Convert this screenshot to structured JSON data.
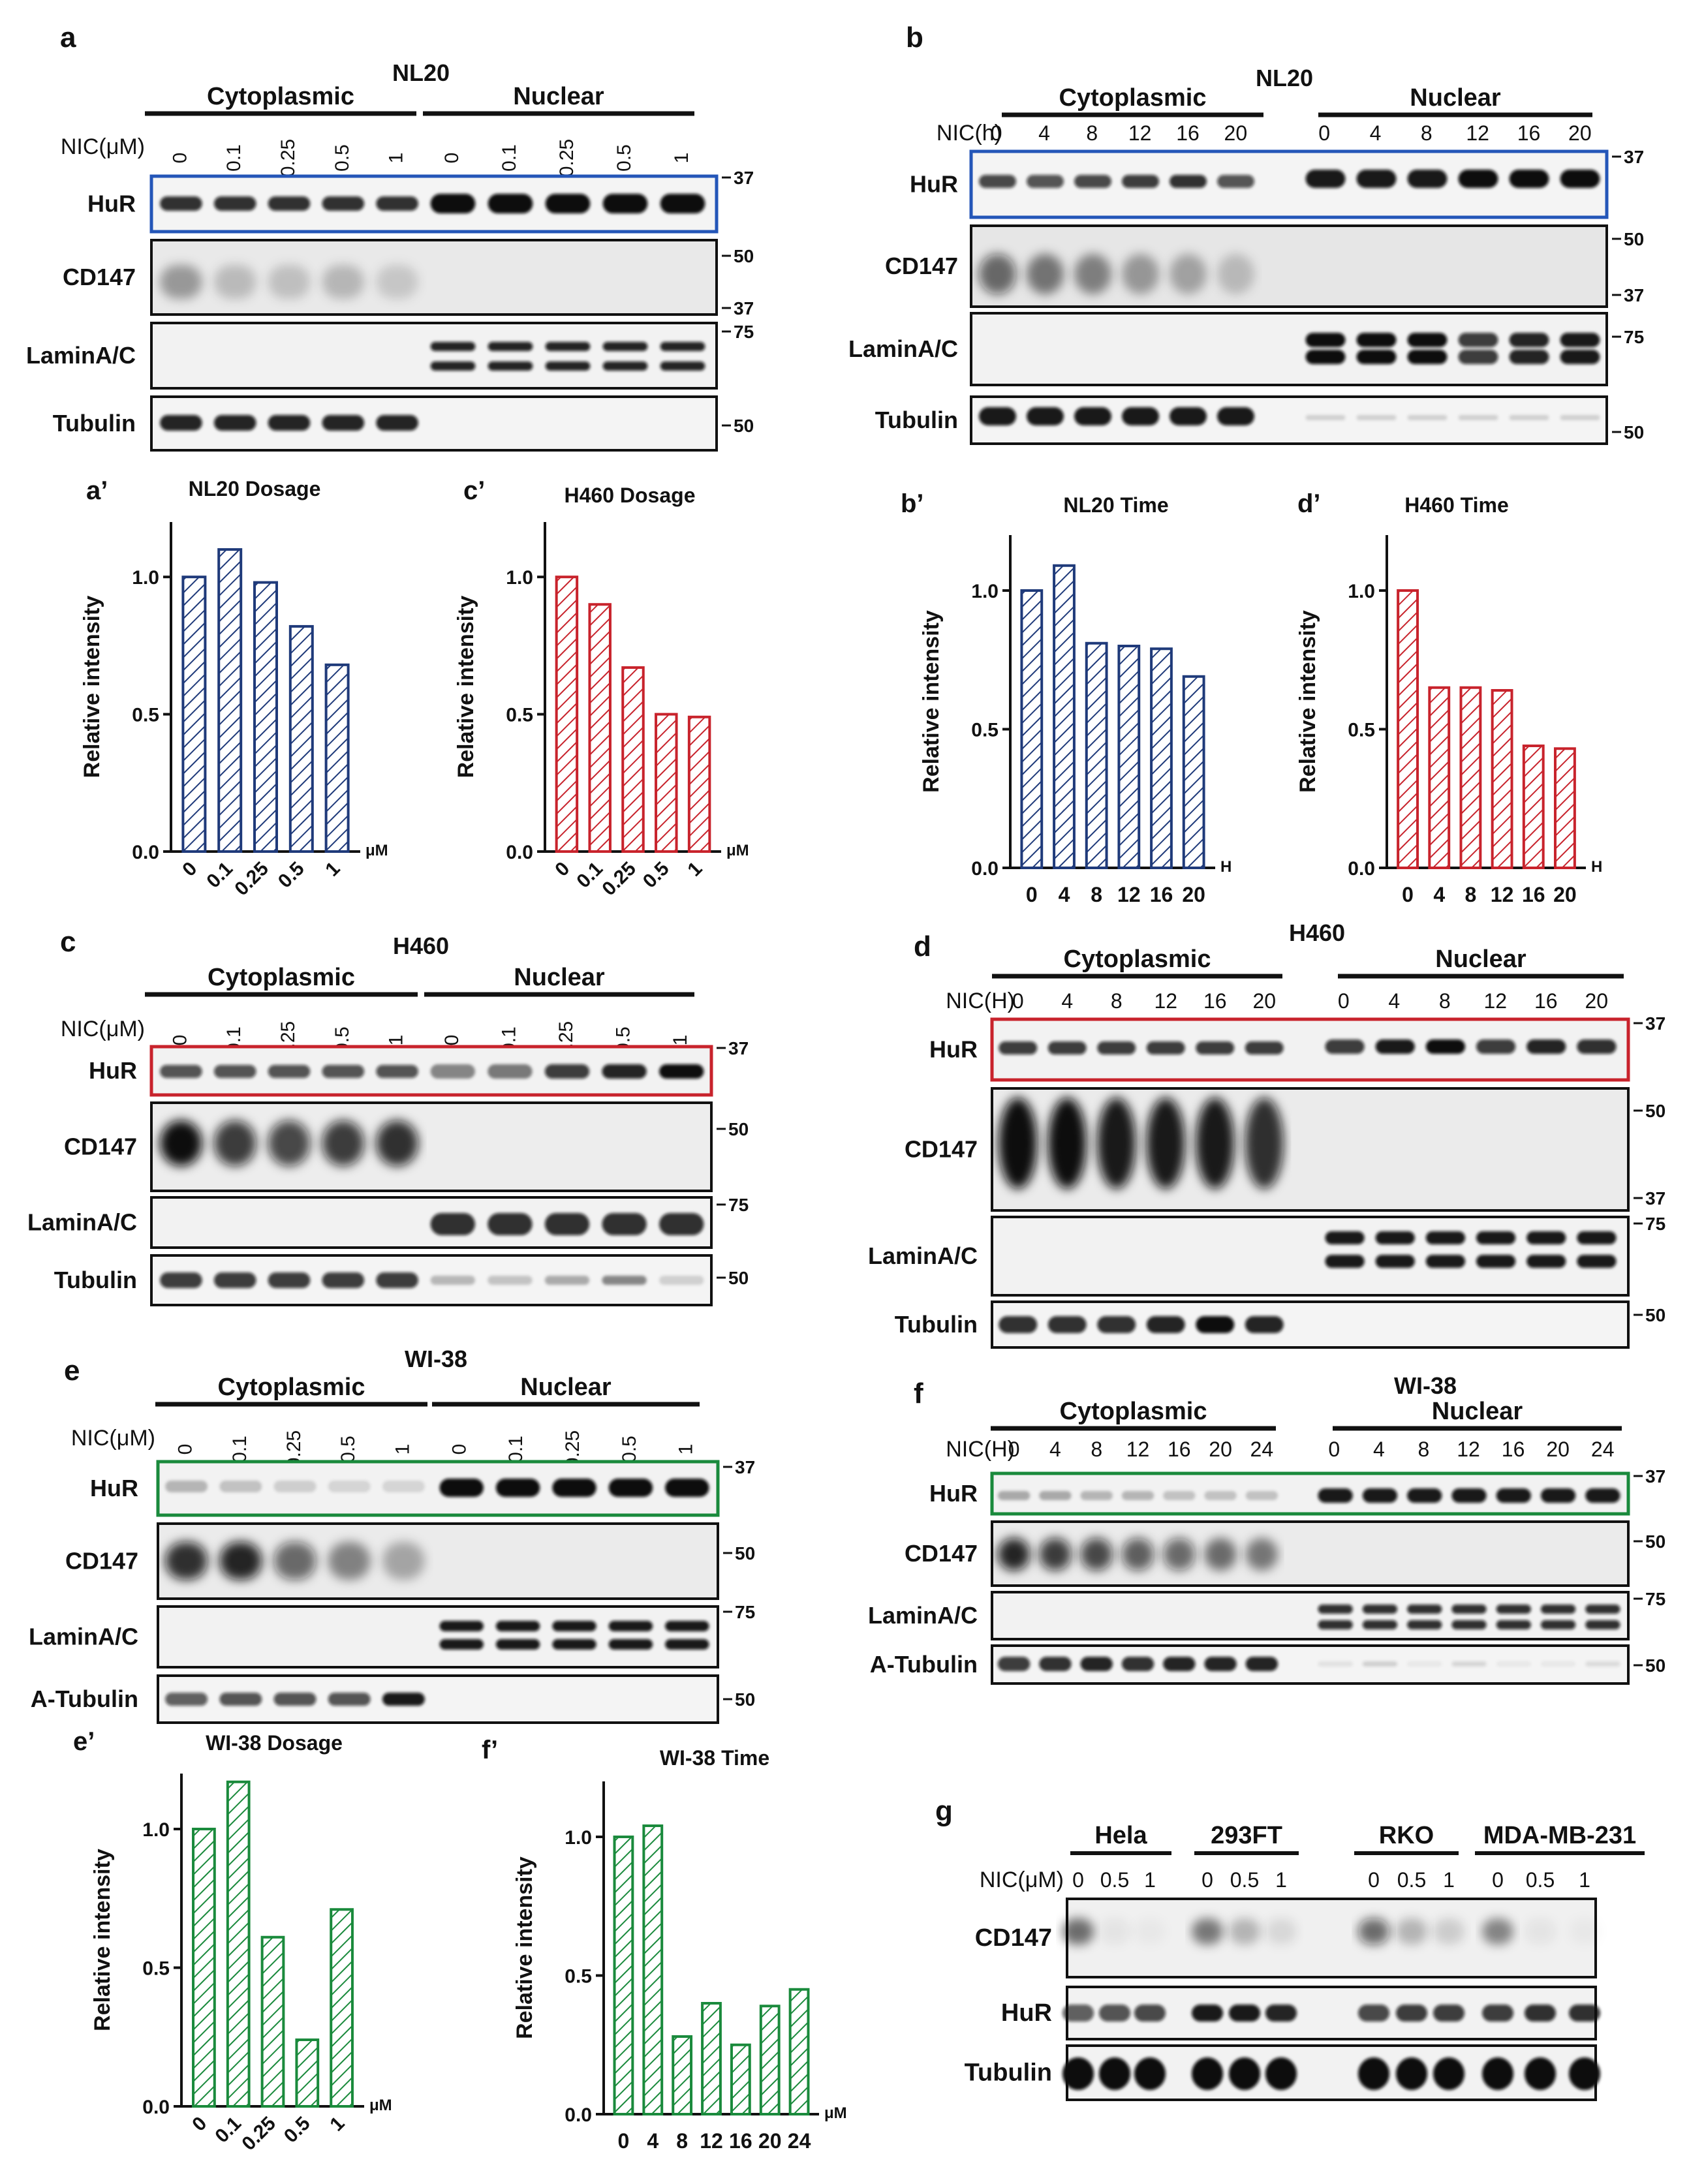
{
  "colors": {
    "navy": "#1f3a7a",
    "red": "#c8232c",
    "green": "#1a8a3c",
    "blueBox": "#2456b8",
    "ink": "#111111"
  },
  "blots": [
    {
      "id": "a",
      "panel_label": "a",
      "cell_line": "NL20",
      "groups": [
        "Cytoplasmic",
        "Nuclear"
      ],
      "treatment_label": "NIC(μM)",
      "lanes_left": [
        "0",
        "0.1",
        "0.25",
        "0.5",
        "1"
      ],
      "lanes_right": [
        "0",
        "0.1",
        "0.25",
        "0.5",
        "1"
      ],
      "lane_rotated": true,
      "rows": [
        {
          "label": "HuR",
          "highlight": "blue",
          "markers": [
            "37"
          ]
        },
        {
          "label": "CD147",
          "markers": [
            "50",
            "37"
          ]
        },
        {
          "label": "LaminA/C",
          "markers": [
            "75"
          ]
        },
        {
          "label": "Tubulin",
          "markers": [
            "50"
          ]
        }
      ]
    },
    {
      "id": "b",
      "panel_label": "b",
      "cell_line": "NL20",
      "groups": [
        "Cytoplasmic",
        "Nuclear"
      ],
      "treatment_label": "NIC(h)",
      "lanes_left": [
        "0",
        "4",
        "8",
        "12",
        "16",
        "20"
      ],
      "lanes_right": [
        "0",
        "4",
        "8",
        "12",
        "16",
        "20"
      ],
      "lane_rotated": false,
      "rows": [
        {
          "label": "HuR",
          "highlight": "blue",
          "markers": [
            "37"
          ]
        },
        {
          "label": "CD147",
          "markers": [
            "50",
            "37"
          ]
        },
        {
          "label": "LaminA/C",
          "markers": [
            "75"
          ]
        },
        {
          "label": "Tubulin",
          "markers": [
            "50"
          ]
        }
      ]
    },
    {
      "id": "c",
      "panel_label": "c",
      "cell_line": "H460",
      "groups": [
        "Cytoplasmic",
        "Nuclear"
      ],
      "treatment_label": "NIC(μM)",
      "lanes_left": [
        "0",
        "0.1",
        "0.25",
        "0.5",
        "1"
      ],
      "lanes_right": [
        "0",
        "0.1",
        "0.25",
        "0.5",
        "1"
      ],
      "lane_rotated": true,
      "rows": [
        {
          "label": "HuR",
          "highlight": "red",
          "markers": [
            "37"
          ]
        },
        {
          "label": "CD147",
          "markers": [
            "50"
          ]
        },
        {
          "label": "LaminA/C",
          "markers": [
            "75"
          ]
        },
        {
          "label": "Tubulin",
          "markers": [
            "50"
          ]
        }
      ]
    },
    {
      "id": "d",
      "panel_label": "d",
      "cell_line": "H460",
      "groups": [
        "Cytoplasmic",
        "Nuclear"
      ],
      "treatment_label": "NIC(H)",
      "lanes_left": [
        "0",
        "4",
        "8",
        "12",
        "16",
        "20"
      ],
      "lanes_right": [
        "0",
        "4",
        "8",
        "12",
        "16",
        "20"
      ],
      "lane_rotated": false,
      "rows": [
        {
          "label": "HuR",
          "highlight": "red",
          "markers": [
            "37"
          ]
        },
        {
          "label": "CD147",
          "markers": [
            "50",
            "37"
          ]
        },
        {
          "label": "LaminA/C",
          "markers": [
            "75"
          ]
        },
        {
          "label": "Tubulin",
          "markers": [
            "50"
          ]
        }
      ]
    },
    {
      "id": "e",
      "panel_label": "e",
      "cell_line": "WI-38",
      "groups": [
        "Cytoplasmic",
        "Nuclear"
      ],
      "treatment_label": "NIC(μM)",
      "lanes_left": [
        "0",
        "0.1",
        "0.25",
        "0.5",
        "1"
      ],
      "lanes_right": [
        "0",
        "0.1",
        "0.25",
        "0.5",
        "1"
      ],
      "lane_rotated": true,
      "rows": [
        {
          "label": "HuR",
          "highlight": "green",
          "markers": [
            "37"
          ]
        },
        {
          "label": "CD147",
          "markers": [
            "50"
          ]
        },
        {
          "label": "LaminA/C",
          "markers": [
            "75"
          ]
        },
        {
          "label": "A-Tubulin",
          "markers": [
            "50"
          ]
        }
      ]
    },
    {
      "id": "f",
      "panel_label": "f",
      "cell_line": "WI-38",
      "groups": [
        "Cytoplasmic",
        "Nuclear"
      ],
      "treatment_label": "NIC(H)",
      "lanes_left": [
        "0",
        "4",
        "8",
        "12",
        "16",
        "20",
        "24"
      ],
      "lanes_right": [
        "0",
        "4",
        "8",
        "12",
        "16",
        "20",
        "24"
      ],
      "lane_rotated": false,
      "rows": [
        {
          "label": "HuR",
          "highlight": "green",
          "markers": [
            "37"
          ]
        },
        {
          "label": "CD147",
          "markers": [
            "50"
          ]
        },
        {
          "label": "LaminA/C",
          "markers": [
            "75"
          ]
        },
        {
          "label": "A-Tubulin",
          "markers": [
            "50"
          ]
        }
      ]
    },
    {
      "id": "g",
      "panel_label": "g",
      "cell_line": "",
      "groups": [
        "Hela",
        "293FT",
        "RKO",
        "MDA-MB-231"
      ],
      "treatment_label": "NIC(μM)",
      "lanes": [
        "0",
        "0.5",
        "1"
      ],
      "lane_rotated": false,
      "rows": [
        {
          "label": "CD147",
          "markers": []
        },
        {
          "label": "HuR",
          "markers": []
        },
        {
          "label": "Tubulin",
          "markers": []
        }
      ]
    }
  ],
  "chart_data": [
    {
      "id": "a_prime",
      "panel_label": "a’",
      "type": "bar",
      "title": "NL20 Dosage",
      "categories": [
        "0",
        "0.1",
        "0.25",
        "0.5",
        "1"
      ],
      "values": [
        1.0,
        1.1,
        0.98,
        0.82,
        0.68
      ],
      "ylabel": "Relative intensity",
      "unit": "μM",
      "ylim": [
        0,
        1.2
      ],
      "yticks": [
        "0.0",
        "0.5",
        "1.0"
      ],
      "ytick_values": [
        0,
        0.5,
        1.0
      ],
      "color": "navy",
      "rotated": true
    },
    {
      "id": "c_prime",
      "panel_label": "c’",
      "type": "bar",
      "title": "H460 Dosage",
      "categories": [
        "0",
        "0.1",
        "0.25",
        "0.5",
        "1"
      ],
      "values": [
        1.0,
        0.9,
        0.67,
        0.5,
        0.49
      ],
      "ylabel": "Relative intensity",
      "unit": "μM",
      "ylim": [
        0,
        1.2
      ],
      "yticks": [
        "0.0",
        "0.5",
        "1.0"
      ],
      "ytick_values": [
        0,
        0.5,
        1.0
      ],
      "color": "red",
      "rotated": true
    },
    {
      "id": "b_prime",
      "panel_label": "b’",
      "type": "bar",
      "title": "NL20 Time",
      "categories": [
        "0",
        "4",
        "8",
        "12",
        "16",
        "20"
      ],
      "values": [
        1.0,
        1.09,
        0.81,
        0.8,
        0.79,
        0.69
      ],
      "ylabel": "Relative intensity",
      "unit": "H",
      "ylim": [
        0,
        1.2
      ],
      "yticks": [
        "0.0",
        "0.5",
        "1.0"
      ],
      "ytick_values": [
        0,
        0.5,
        1.0
      ],
      "color": "navy",
      "rotated": false
    },
    {
      "id": "d_prime",
      "panel_label": "d’",
      "type": "bar",
      "title": "H460 Time",
      "categories": [
        "0",
        "4",
        "8",
        "12",
        "16",
        "20"
      ],
      "values": [
        1.0,
        0.65,
        0.65,
        0.64,
        0.44,
        0.43
      ],
      "ylabel": "Relative intensity",
      "unit": "H",
      "ylim": [
        0,
        1.2
      ],
      "yticks": [
        "0.0",
        "0.5",
        "1.0"
      ],
      "ytick_values": [
        0,
        0.5,
        1.0
      ],
      "color": "red",
      "rotated": false
    },
    {
      "id": "e_prime",
      "panel_label": "e’",
      "type": "bar",
      "title": "WI-38 Dosage",
      "categories": [
        "0",
        "0.1",
        "0.25",
        "0.5",
        "1"
      ],
      "values": [
        1.0,
        1.17,
        0.61,
        0.24,
        0.71
      ],
      "ylabel": "Relative intensity",
      "unit": "μM",
      "ylim": [
        0,
        1.2
      ],
      "yticks": [
        "0.0",
        "0.5",
        "1.0"
      ],
      "ytick_values": [
        0,
        0.5,
        1.0
      ],
      "color": "green",
      "rotated": true
    },
    {
      "id": "f_prime",
      "panel_label": "f’",
      "type": "bar",
      "title": "WI-38 Time",
      "categories": [
        "0",
        "4",
        "8",
        "12",
        "16",
        "20",
        "24"
      ],
      "values": [
        1.0,
        1.04,
        0.28,
        0.4,
        0.25,
        0.39,
        0.45
      ],
      "ylabel": "Relative intensity",
      "unit": "μM",
      "ylim": [
        0,
        1.2
      ],
      "yticks": [
        "0.0",
        "0.5",
        "1.0"
      ],
      "ytick_values": [
        0,
        0.5,
        1.0
      ],
      "color": "green",
      "rotated": false
    }
  ]
}
